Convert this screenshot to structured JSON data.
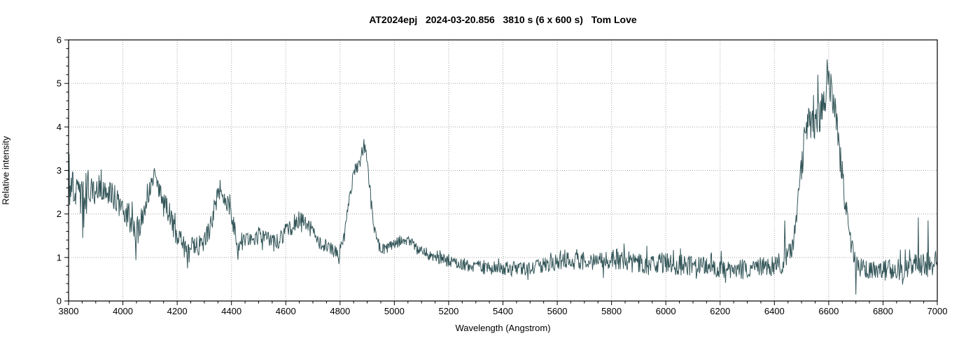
{
  "chart_data": {
    "type": "line",
    "title": "AT2024epj   2024-03-20.856   3810 s (6 x 600 s)   Tom Love",
    "xlabel": "Wavelength (Angstrom)",
    "ylabel": "Relative intensity",
    "xlim": [
      3800,
      7000
    ],
    "ylim": [
      0,
      6
    ],
    "x_major_step": 200,
    "x_minor_step": 50,
    "y_major_step": 1,
    "y_minor_step": 0.2,
    "grid": {
      "style": "dotted",
      "color": "#a8a8a8",
      "on_major_x": true,
      "on_major_y": true
    },
    "legend": "none",
    "line_color": "#345659",
    "frame_color": "#000000",
    "background": "#ffffff",
    "sample_step_angstrom": 2,
    "noise_seed": 20240320,
    "envelope_points": [
      [
        3800,
        2.35,
        0.4
      ],
      [
        3815,
        2.6,
        0.4
      ],
      [
        3835,
        2.5,
        0.38
      ],
      [
        3852,
        2.3,
        0.5
      ],
      [
        3870,
        2.6,
        0.32
      ],
      [
        3895,
        2.5,
        0.35
      ],
      [
        3925,
        2.65,
        0.33
      ],
      [
        3955,
        2.45,
        0.3
      ],
      [
        3985,
        2.25,
        0.3
      ],
      [
        4010,
        2.05,
        0.3
      ],
      [
        4035,
        1.8,
        0.35
      ],
      [
        4048,
        1.3,
        0.28
      ],
      [
        4065,
        1.8,
        0.3
      ],
      [
        4090,
        2.45,
        0.28
      ],
      [
        4115,
        2.85,
        0.18
      ],
      [
        4140,
        2.5,
        0.25
      ],
      [
        4165,
        2.05,
        0.25
      ],
      [
        4195,
        1.55,
        0.25
      ],
      [
        4220,
        1.3,
        0.28
      ],
      [
        4240,
        1.15,
        0.3
      ],
      [
        4265,
        1.25,
        0.22
      ],
      [
        4295,
        1.3,
        0.25
      ],
      [
        4320,
        1.7,
        0.3
      ],
      [
        4345,
        2.35,
        0.25
      ],
      [
        4360,
        2.55,
        0.2
      ],
      [
        4380,
        2.3,
        0.25
      ],
      [
        4400,
        1.9,
        0.3
      ],
      [
        4422,
        1.4,
        0.3
      ],
      [
        4445,
        1.35,
        0.18
      ],
      [
        4475,
        1.42,
        0.2
      ],
      [
        4505,
        1.5,
        0.2
      ],
      [
        4535,
        1.38,
        0.2
      ],
      [
        4565,
        1.35,
        0.18
      ],
      [
        4595,
        1.5,
        0.2
      ],
      [
        4625,
        1.72,
        0.2
      ],
      [
        4652,
        1.88,
        0.18
      ],
      [
        4678,
        1.75,
        0.2
      ],
      [
        4705,
        1.5,
        0.18
      ],
      [
        4735,
        1.27,
        0.15
      ],
      [
        4765,
        1.2,
        0.15
      ],
      [
        4792,
        1.12,
        0.18
      ],
      [
        4812,
        1.35,
        0.15
      ],
      [
        4832,
        2.2,
        0.18
      ],
      [
        4850,
        2.95,
        0.16
      ],
      [
        4862,
        3.05,
        0.18
      ],
      [
        4876,
        3.25,
        0.16
      ],
      [
        4888,
        3.55,
        0.12
      ],
      [
        4898,
        3.35,
        0.14
      ],
      [
        4910,
        2.6,
        0.18
      ],
      [
        4924,
        1.75,
        0.15
      ],
      [
        4940,
        1.25,
        0.12
      ],
      [
        4965,
        1.18,
        0.13
      ],
      [
        4995,
        1.3,
        0.14
      ],
      [
        5025,
        1.42,
        0.12
      ],
      [
        5055,
        1.38,
        0.12
      ],
      [
        5085,
        1.22,
        0.12
      ],
      [
        5120,
        1.07,
        0.12
      ],
      [
        5160,
        0.97,
        0.13
      ],
      [
        5205,
        0.9,
        0.14
      ],
      [
        5255,
        0.85,
        0.15
      ],
      [
        5305,
        0.8,
        0.16
      ],
      [
        5360,
        0.76,
        0.17
      ],
      [
        5420,
        0.74,
        0.17
      ],
      [
        5480,
        0.76,
        0.17
      ],
      [
        5540,
        0.8,
        0.18
      ],
      [
        5600,
        0.86,
        0.2
      ],
      [
        5655,
        0.92,
        0.2
      ],
      [
        5710,
        0.93,
        0.22
      ],
      [
        5765,
        0.92,
        0.24
      ],
      [
        5825,
        0.95,
        0.26
      ],
      [
        5885,
        0.9,
        0.26
      ],
      [
        5945,
        0.87,
        0.25
      ],
      [
        6005,
        0.86,
        0.26
      ],
      [
        6065,
        0.82,
        0.25
      ],
      [
        6125,
        0.79,
        0.24
      ],
      [
        6185,
        0.78,
        0.24
      ],
      [
        6245,
        0.76,
        0.24
      ],
      [
        6305,
        0.73,
        0.24
      ],
      [
        6365,
        0.78,
        0.24
      ],
      [
        6410,
        0.84,
        0.25
      ],
      [
        6442,
        0.95,
        0.28
      ],
      [
        6465,
        1.2,
        0.25
      ],
      [
        6482,
        1.9,
        0.3
      ],
      [
        6497,
        2.9,
        0.35
      ],
      [
        6512,
        3.75,
        0.4
      ],
      [
        6527,
        4.15,
        0.5
      ],
      [
        6542,
        4.25,
        0.55
      ],
      [
        6558,
        4.3,
        0.55
      ],
      [
        6572,
        4.45,
        0.5
      ],
      [
        6586,
        4.8,
        0.4
      ],
      [
        6597,
        5.1,
        0.3
      ],
      [
        6607,
        4.95,
        0.32
      ],
      [
        6618,
        4.5,
        0.32
      ],
      [
        6630,
        4.05,
        0.3
      ],
      [
        6643,
        3.4,
        0.3
      ],
      [
        6656,
        2.6,
        0.3
      ],
      [
        6669,
        1.8,
        0.3
      ],
      [
        6684,
        1.2,
        0.3
      ],
      [
        6704,
        0.82,
        0.28
      ],
      [
        6735,
        0.76,
        0.25
      ],
      [
        6785,
        0.72,
        0.25
      ],
      [
        6845,
        0.7,
        0.27
      ],
      [
        6905,
        0.78,
        0.28
      ],
      [
        6940,
        0.88,
        0.32
      ],
      [
        6970,
        0.85,
        0.32
      ],
      [
        7000,
        0.9,
        0.3
      ]
    ],
    "spike_points": [
      [
        3802,
        3.38
      ],
      [
        3851,
        1.45
      ],
      [
        3920,
        3.02
      ],
      [
        4047,
        0.94
      ],
      [
        4116,
        3.05
      ],
      [
        4237,
        0.75
      ],
      [
        4358,
        2.78
      ],
      [
        4424,
        0.95
      ],
      [
        4500,
        1.7
      ],
      [
        4655,
        2.03
      ],
      [
        4795,
        0.85
      ],
      [
        4888,
        3.72
      ],
      [
        5845,
        1.32
      ],
      [
        6438,
        1.85
      ],
      [
        6560,
        5.2
      ],
      [
        6594,
        5.55
      ],
      [
        6700,
        0.15
      ],
      [
        6930,
        1.92
      ],
      [
        6965,
        1.85
      ]
    ]
  }
}
